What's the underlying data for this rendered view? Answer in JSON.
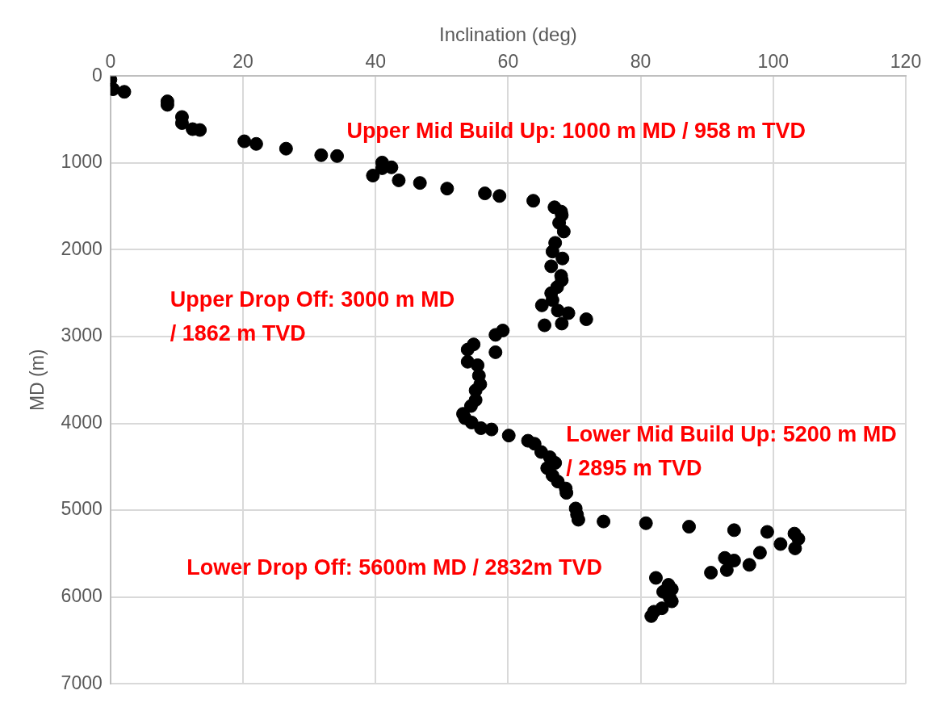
{
  "chart_data": {
    "type": "scatter",
    "xlabel": "Inclination (deg)",
    "ylabel": "MD (m)",
    "xlim": [
      0,
      120
    ],
    "xticks": [
      0,
      20,
      40,
      60,
      80,
      100,
      120
    ],
    "ylim": [
      7000,
      0
    ],
    "yticks": [
      0,
      1000,
      2000,
      3000,
      4000,
      5000,
      6000,
      7000
    ],
    "grid": true,
    "marker": "circle",
    "series": [
      {
        "color": "#000000",
        "x": [
          0,
          0.4,
          2.1,
          8.6,
          8.6,
          10.8,
          10.8,
          12.4,
          13.5,
          20.2,
          22,
          26.5,
          31.8,
          34.2,
          41,
          41,
          42.4,
          39.6,
          43.5,
          46.7,
          50.8,
          56.5,
          58.7,
          63.8,
          67,
          68,
          68.1,
          67.7,
          68.4,
          67.1,
          66.7,
          68.2,
          66.5,
          68,
          68.1,
          67.4,
          66.5,
          66.7,
          65.1,
          67.5,
          69.1,
          71.8,
          68.1,
          65.5,
          59.2,
          58.1,
          58.1,
          54.8,
          53.9,
          53.9,
          55.4,
          55.6,
          55.8,
          55.1,
          55.1,
          54.4,
          53.2,
          53.5,
          54.5,
          55.9,
          57.5,
          60.1,
          63,
          64,
          65,
          66.3,
          67.1,
          65.9,
          66.7,
          67.5,
          68.7,
          68.8,
          70.2,
          70.4,
          70.6,
          74.4,
          80.8,
          87.3,
          94.1,
          99.1,
          103.2,
          103.8,
          103.3,
          101.1,
          98,
          96.4,
          94.1,
          92.7,
          93,
          90.6,
          82.3,
          84.2,
          84.7,
          83.4,
          84.4,
          84.7,
          83.2,
          82,
          81.6
        ],
        "values": [
          40,
          150,
          180,
          290,
          330,
          470,
          540,
          610,
          620,
          750,
          780,
          835,
          910,
          920,
          995,
          1060,
          1050,
          1145,
          1200,
          1230,
          1295,
          1350,
          1380,
          1435,
          1510,
          1560,
          1600,
          1690,
          1790,
          1920,
          2020,
          2100,
          2190,
          2300,
          2350,
          2430,
          2500,
          2580,
          2640,
          2700,
          2730,
          2800,
          2850,
          2870,
          2930,
          2980,
          3180,
          3090,
          3150,
          3290,
          3330,
          3450,
          3550,
          3620,
          3730,
          3800,
          3890,
          3940,
          3990,
          4055,
          4070,
          4140,
          4200,
          4235,
          4330,
          4390,
          4455,
          4515,
          4600,
          4670,
          4750,
          4800,
          4980,
          5050,
          5110,
          5130,
          5150,
          5190,
          5230,
          5250,
          5270,
          5330,
          5440,
          5390,
          5490,
          5630,
          5580,
          5550,
          5690,
          5720,
          5780,
          5860,
          5910,
          5940,
          6010,
          6050,
          6130,
          6170,
          6220
        ]
      }
    ],
    "annotations": [
      "Upper Mid Build Up: 1000 m MD / 958 m TVD",
      "Upper Drop Off: 3000 m MD\n/ 1862 m TVD",
      "Lower Mid Build Up: 5200 m MD\n/ 2895 m TVD",
      "Lower Drop Off: 5600m MD / 2832m TVD"
    ]
  }
}
